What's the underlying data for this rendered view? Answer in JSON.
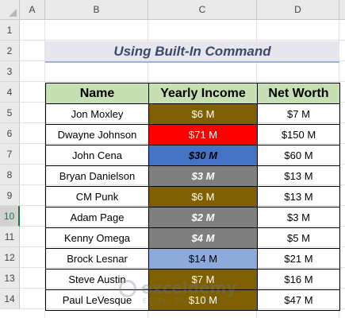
{
  "sheet": {
    "columns": [
      "A",
      "B",
      "C",
      "D"
    ],
    "rows": [
      "1",
      "2",
      "3",
      "4",
      "5",
      "6",
      "7",
      "8",
      "9",
      "10",
      "11",
      "12",
      "13",
      "14"
    ],
    "selected_row": "10"
  },
  "title": "Using Built-In Command",
  "table": {
    "headers": [
      "Name",
      "Yearly Income",
      "Net Worth"
    ],
    "rows": [
      {
        "name": "Jon Moxley",
        "income": "$6 M",
        "net_worth": "$7 M",
        "fill": "#7f6000",
        "font_color": "#ffffff",
        "bold": false,
        "italic": false
      },
      {
        "name": "Dwayne Johnson",
        "income": "$71 M",
        "net_worth": "$150 M",
        "fill": "#ff0000",
        "font_color": "#ffffff",
        "bold": false,
        "italic": false
      },
      {
        "name": "John Cena",
        "income": "$30 M",
        "net_worth": "$60 M",
        "fill": "#4472c4",
        "font_color": "#000000",
        "bold": true,
        "italic": true
      },
      {
        "name": "Bryan Danielson",
        "income": "$3 M",
        "net_worth": "$13 M",
        "fill": "#7f7f7f",
        "font_color": "#ffffff",
        "bold": true,
        "italic": true
      },
      {
        "name": "CM Punk",
        "income": "$6 M",
        "net_worth": "$13 M",
        "fill": "#7f6000",
        "font_color": "#ffffff",
        "bold": false,
        "italic": false
      },
      {
        "name": "Adam Page",
        "income": "$2 M",
        "net_worth": "$3 M",
        "fill": "#7f7f7f",
        "font_color": "#ffffff",
        "bold": true,
        "italic": true
      },
      {
        "name": "Kenny Omega",
        "income": "$4 M",
        "net_worth": "$5 M",
        "fill": "#7f7f7f",
        "font_color": "#ffffff",
        "bold": true,
        "italic": true
      },
      {
        "name": "Brock Lesnar",
        "income": "$14 M",
        "net_worth": "$21 M",
        "fill": "#8eaadb",
        "font_color": "#000000",
        "bold": false,
        "italic": false
      },
      {
        "name": "Steve Austin",
        "income": "$7 M",
        "net_worth": "$16 M",
        "fill": "#7f6000",
        "font_color": "#ffffff",
        "bold": false,
        "italic": false
      },
      {
        "name": "Paul LeVesque",
        "income": "$10 M",
        "net_worth": "$47 M",
        "fill": "#7f6000",
        "font_color": "#ffffff",
        "bold": false,
        "italic": false
      }
    ]
  },
  "watermark": {
    "name": "exceldemy",
    "tagline": "EXCEL · DATA · BI"
  },
  "colors": {
    "header_fill": "#c6e0b4",
    "title_fill": "#e7e6ef",
    "title_text": "#3b4a6b",
    "selected_row": "#217346"
  }
}
